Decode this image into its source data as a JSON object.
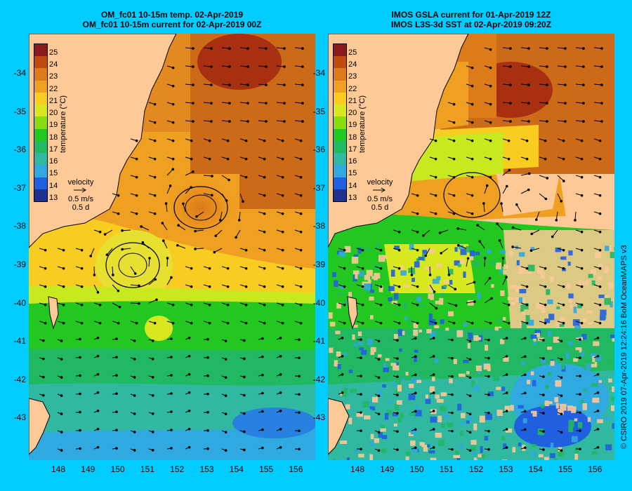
{
  "left_panel": {
    "title_line1": "OM_fc01 10-15m temp. 02-Apr-2019",
    "title_line2": "OM_fc01 10-15m current for 02-Apr-2019 00Z"
  },
  "right_panel": {
    "title_line1": "IMOS GSLA current for 01-Apr-2019 12Z",
    "title_line2": "IMOS L3S-3d SST at 02-Apr-2019 09:20Z"
  },
  "axes": {
    "lat_ticks": [
      "-34",
      "-35",
      "-36",
      "-37",
      "-38",
      "-39",
      "-40",
      "-41",
      "-42",
      "-43"
    ],
    "lon_ticks": [
      "148",
      "149",
      "150",
      "151",
      "152",
      "153",
      "154",
      "155",
      "156"
    ]
  },
  "colorbar": {
    "title": "temperature (°C)",
    "ticks": [
      "25",
      "24",
      "23",
      "22",
      "21",
      "20",
      "19",
      "18",
      "17",
      "16",
      "15",
      "14",
      "13"
    ],
    "colors": [
      "#8b1a1a",
      "#c04a10",
      "#dd7a1a",
      "#f0a020",
      "#f8cc20",
      "#d8e820",
      "#88dd10",
      "#22c820",
      "#20b860",
      "#30b8a0",
      "#30a8e0",
      "#2060e0",
      "#203090"
    ]
  },
  "velocity_legend": {
    "label": "velocity",
    "speed": "0.5 m/s",
    "duration": "0.5 d"
  },
  "credit": "© CSIRO 2019   07-Apr-2019 12:24:16 BoM OceanMAPS v3"
}
